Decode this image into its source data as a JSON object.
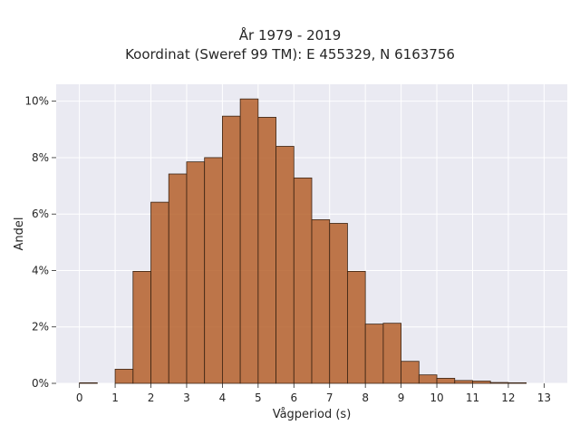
{
  "chart_data": {
    "type": "bar",
    "title_lines": [
      "År 1979 - 2019",
      "Koordinat (Sweref 99 TM): E 455329, N 6163756"
    ],
    "xlabel": "Vågperiod (s)",
    "ylabel": "Andel",
    "bin_width": 0.5,
    "bins_start": [
      0,
      0.5,
      1,
      1.5,
      2,
      2.5,
      3,
      3.5,
      4,
      4.5,
      5,
      5.5,
      6,
      6.5,
      7,
      7.5,
      8,
      8.5,
      9,
      9.5,
      10,
      10.5,
      11,
      11.5,
      12,
      12.5
    ],
    "values": [
      0.02,
      0.0,
      0.5,
      3.97,
      6.42,
      7.42,
      7.85,
      8.0,
      9.47,
      10.08,
      9.43,
      8.4,
      7.28,
      5.8,
      5.67,
      3.97,
      2.1,
      2.13,
      0.78,
      0.3,
      0.18,
      0.1,
      0.08,
      0.03,
      0.02,
      0.0
    ],
    "x_ticks": [
      "0",
      "1",
      "2",
      "3",
      "4",
      "5",
      "6",
      "7",
      "8",
      "9",
      "10",
      "11",
      "12",
      "13"
    ],
    "y_ticks": [
      "0%",
      "2%",
      "4%",
      "6%",
      "8%",
      "10%"
    ],
    "xlim": [
      -0.65,
      13.65
    ],
    "ylim": [
      0,
      10.6
    ],
    "grid": true,
    "bar_color": "#b5602c",
    "bar_edge_color": "#3a2414",
    "background_color": "#eaeaf2"
  }
}
